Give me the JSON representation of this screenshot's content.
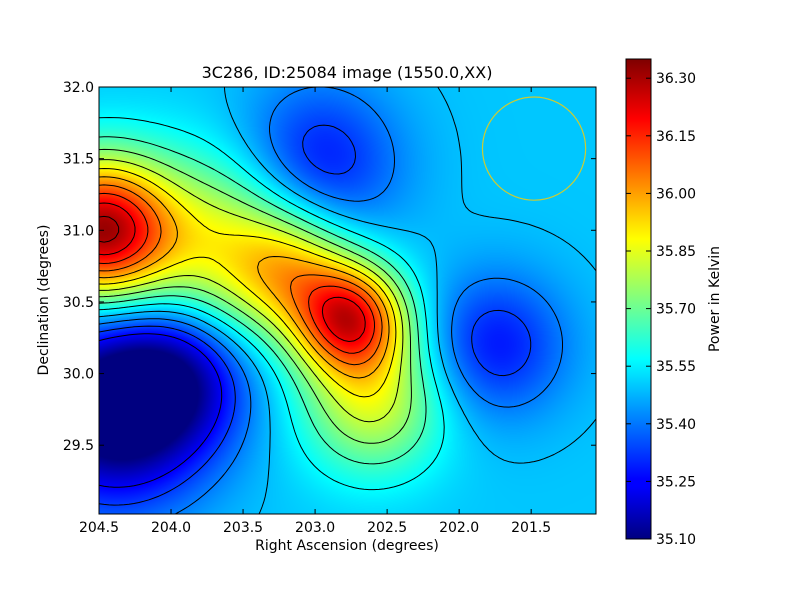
{
  "chart_data": {
    "type": "heatmap",
    "title": "3C286, ID:25084 image (1550.0,XX)",
    "xlabel": "Right Ascension (degrees)",
    "ylabel": "Declination (degrees)",
    "xlim": [
      204.5,
      201.05
    ],
    "ylim": [
      29.02,
      32.0
    ],
    "x_ticks": [
      "204.5",
      "204.0",
      "203.5",
      "203.0",
      "202.5",
      "202.0",
      "201.5"
    ],
    "x_tick_values": [
      204.5,
      204.0,
      203.5,
      203.0,
      202.5,
      202.0,
      201.5
    ],
    "y_ticks": [
      "29.5",
      "30.0",
      "30.5",
      "31.0",
      "31.5",
      "32.0"
    ],
    "y_tick_values": [
      29.5,
      30.0,
      30.5,
      31.0,
      31.5,
      32.0
    ],
    "colorbar": {
      "label": "Power in Kelvin",
      "range": [
        35.1,
        36.35
      ],
      "ticks": [
        "36.30",
        "36.15",
        "36.00",
        "35.85",
        "35.70",
        "35.55",
        "35.40",
        "35.25",
        "35.10"
      ],
      "tick_values": [
        36.3,
        36.15,
        36.0,
        35.85,
        35.7,
        35.55,
        35.4,
        35.25,
        35.1
      ],
      "colormap": "jet"
    },
    "components": [
      {
        "ra": 204.5,
        "dec": 31.0,
        "amp": 0.78,
        "sigma": 0.35
      },
      {
        "ra": 203.6,
        "dec": 30.9,
        "amp": 0.35,
        "sigma": 0.45
      },
      {
        "ra": 202.75,
        "dec": 30.38,
        "amp": 0.62,
        "sigma": 0.27
      },
      {
        "ra": 203.15,
        "dec": 30.7,
        "amp": 0.28,
        "sigma": 0.3
      },
      {
        "ra": 202.6,
        "dec": 29.8,
        "amp": 0.32,
        "sigma": 0.35
      },
      {
        "ra": 204.4,
        "dec": 29.75,
        "amp": -0.5,
        "sigma": 0.45
      },
      {
        "ra": 203.95,
        "dec": 30.0,
        "amp": -0.25,
        "sigma": 0.35
      },
      {
        "ra": 203.0,
        "dec": 31.45,
        "amp": -0.25,
        "sigma": 0.4
      },
      {
        "ra": 201.75,
        "dec": 30.2,
        "amp": -0.22,
        "sigma": 0.35
      }
    ],
    "baseline": 35.5,
    "contour_levels": [
      35.25,
      35.33,
      35.41,
      35.49,
      35.57,
      35.65,
      35.73,
      35.81,
      35.89,
      35.97,
      36.05,
      36.13,
      36.21,
      36.29
    ],
    "beam_circle": {
      "ra": 201.48,
      "dec": 31.57,
      "radius_deg": 0.36,
      "color": "#cccc33"
    }
  }
}
